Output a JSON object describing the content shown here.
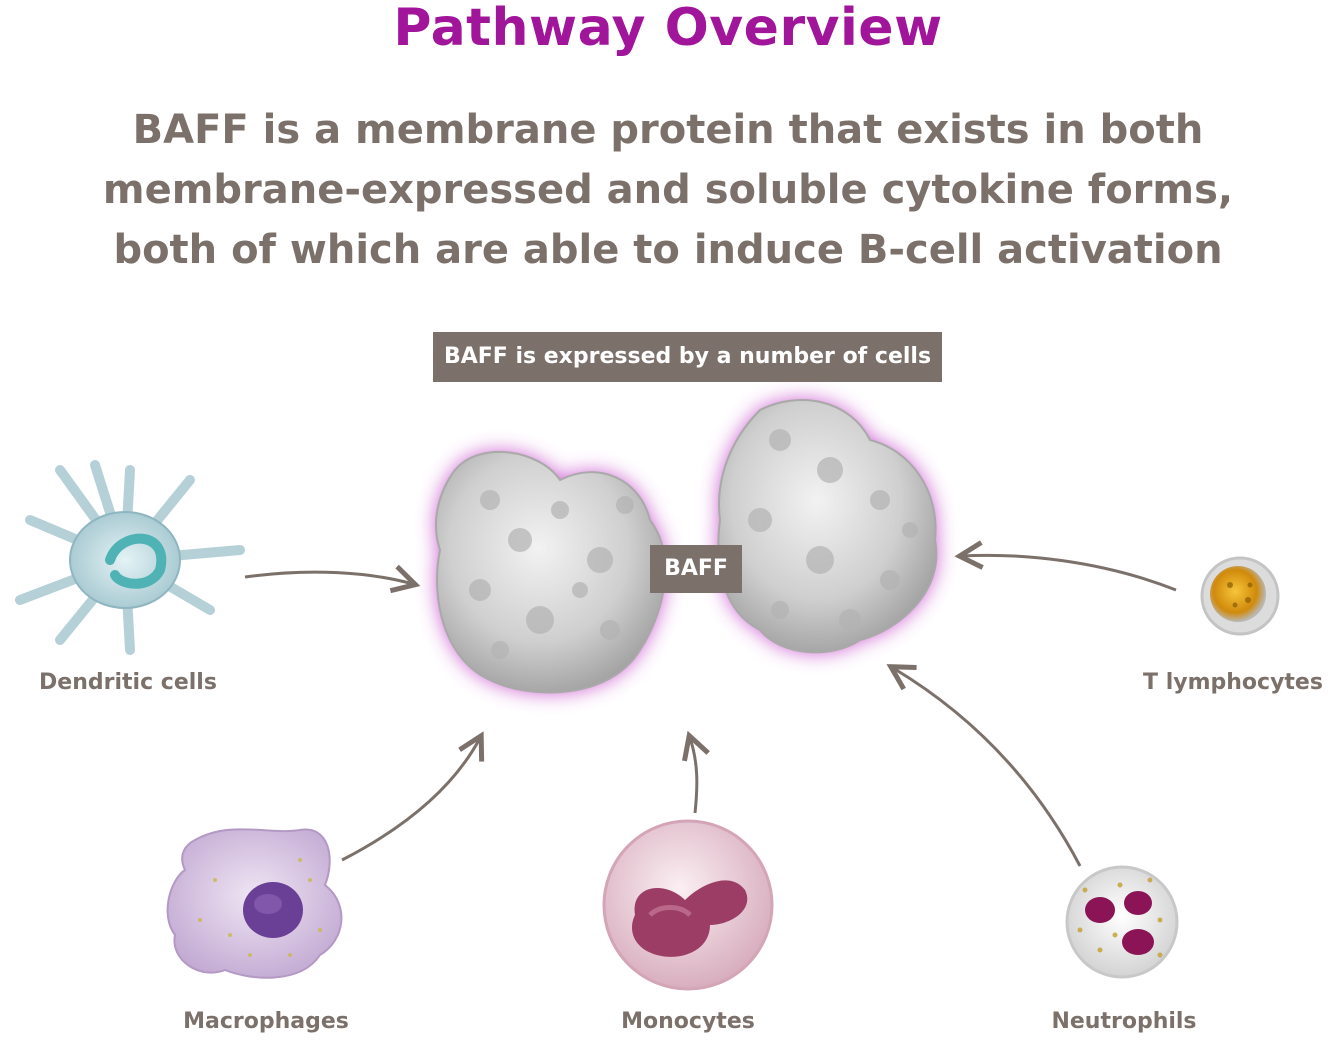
{
  "title": "Pathway Overview",
  "headline": [
    "BAFF is a membrane protein that exists in both",
    "membrane-expressed and soluble cytokine forms,",
    "both of which are able to induce B-cell activation"
  ],
  "caption": "BAFF is expressed by a number of cells",
  "center_label": "BAFF",
  "cells": {
    "dendritic": "Dendritic cells",
    "t_lymphocytes": "T lymphocytes",
    "macrophages": "Macrophages",
    "monocytes": "Monocytes",
    "neutrophils": "Neutrophils"
  },
  "colors": {
    "title": "#a1159b",
    "text": "#7b716a",
    "arrow": "#7b716a",
    "glow": "#c23cc8"
  }
}
